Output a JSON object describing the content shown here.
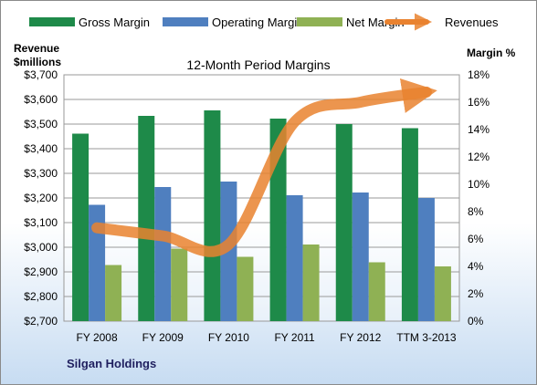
{
  "chart_data": {
    "type": "bar",
    "title": "12-Month Period Margins",
    "categories": [
      "FY 2008",
      "FY 2009",
      "FY 2010",
      "FY 2011",
      "FY 2012",
      "TTM 3-2013"
    ],
    "left_axis": {
      "label_line1": "Revenue",
      "label_line2": "$millions",
      "range": [
        2700,
        3700
      ],
      "step": 100,
      "tick_labels": [
        "$2,700",
        "$2,800",
        "$2,900",
        "$3,000",
        "$3,100",
        "$3,200",
        "$3,300",
        "$3,400",
        "$3,500",
        "$3,600",
        "$3,700"
      ]
    },
    "right_axis": {
      "label": "Margin %",
      "range": [
        0,
        18
      ],
      "step": 2,
      "tick_labels": [
        "0%",
        "2%",
        "4%",
        "6%",
        "8%",
        "10%",
        "12%",
        "14%",
        "16%",
        "18%"
      ]
    },
    "grid": true,
    "legend_position": "top",
    "series": [
      {
        "name": "Gross Margin",
        "type": "bar",
        "axis": "right",
        "color": "#1e8a49",
        "values": [
          13.7,
          15.0,
          15.4,
          14.8,
          14.4,
          14.1
        ]
      },
      {
        "name": "Operating Margin",
        "type": "bar",
        "axis": "right",
        "color": "#4f7fbf",
        "values": [
          8.5,
          9.8,
          10.2,
          9.2,
          9.4,
          9.0
        ]
      },
      {
        "name": "Net Margin",
        "type": "bar",
        "axis": "right",
        "color": "#8fb154",
        "values": [
          4.1,
          5.3,
          4.7,
          5.6,
          4.3,
          4.0
        ]
      },
      {
        "name": "Revenues",
        "type": "line",
        "axis": "left",
        "color": "#e9822f",
        "values": [
          3079,
          3046,
          3011,
          3509,
          3589,
          3630
        ]
      }
    ]
  },
  "company": "Silgan Holdings"
}
